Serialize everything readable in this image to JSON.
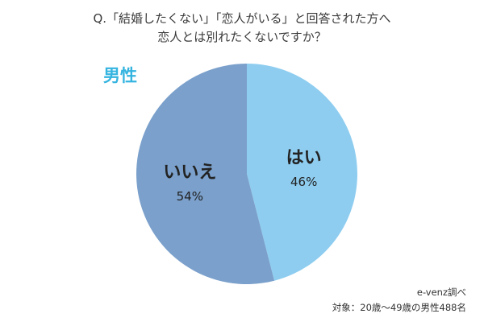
{
  "question": {
    "line1": "Q.「結婚したくない」「恋人がいる」と回答された方へ",
    "line2": "恋人とは別れたくないですか？"
  },
  "gender_label": "男性",
  "chart_data": {
    "type": "pie",
    "title": "Q.「結婚したくない」「恋人がいる」と回答された方へ 恋人とは別れたくないですか？",
    "subtitle": "男性",
    "slices": [
      {
        "label": "はい",
        "value": 46,
        "value_label": "46%",
        "color": "#8ecdf0"
      },
      {
        "label": "いいえ",
        "value": 54,
        "value_label": "54%",
        "color": "#7aa0cb"
      }
    ],
    "start": "top",
    "direction": "clockwise",
    "legend": "none"
  },
  "source": {
    "line1": "e-venz調べ",
    "line2": "対象：20歳〜49歳の男性488名"
  }
}
